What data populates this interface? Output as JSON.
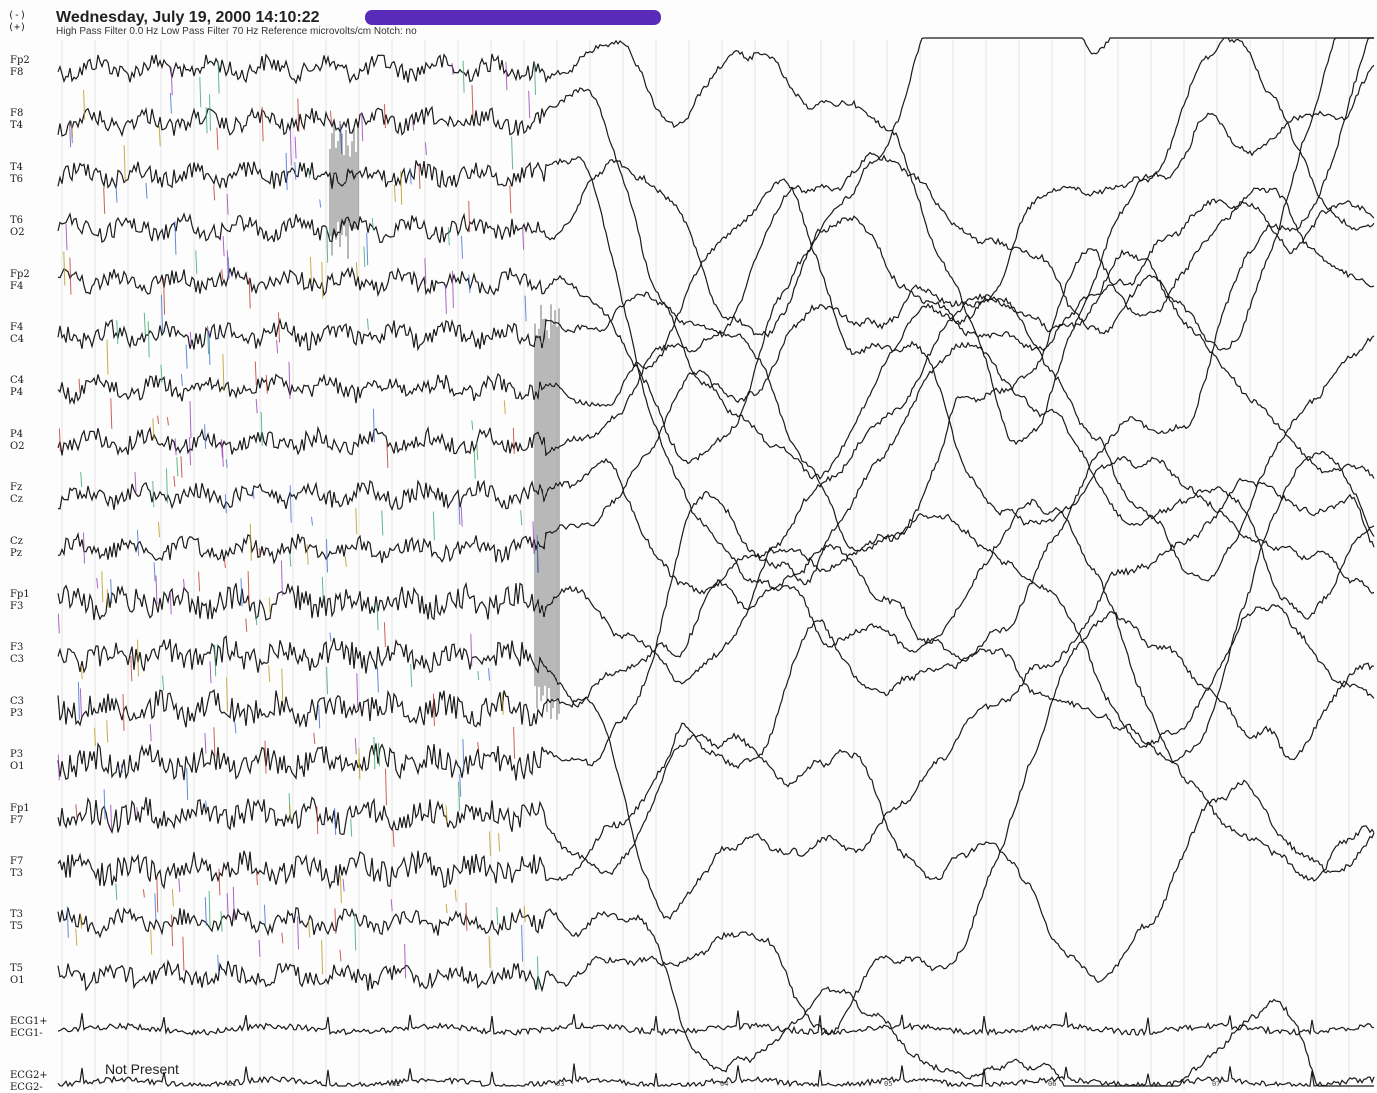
{
  "header": {
    "polarity_neg": "(-)",
    "polarity_pos": "(+)",
    "timestamp": "Wednesday, July 19, 2000 14:10:22",
    "filter_line": "High Pass Filter 0.0 Hz  Low Pass Filter 70 Hz  Reference  microvolts/cm  Notch: no",
    "highlight_color": "#5a2bb8"
  },
  "channels": [
    {
      "top": "Fp2",
      "bottom": "F8"
    },
    {
      "top": "F8",
      "bottom": "T4"
    },
    {
      "top": "T4",
      "bottom": "T6"
    },
    {
      "top": "T6",
      "bottom": "O2"
    },
    {
      "top": "Fp2",
      "bottom": "F4"
    },
    {
      "top": "F4",
      "bottom": "C4"
    },
    {
      "top": "C4",
      "bottom": "P4"
    },
    {
      "top": "P4",
      "bottom": "O2"
    },
    {
      "top": "Fz",
      "bottom": "Cz"
    },
    {
      "top": "Cz",
      "bottom": "Pz"
    },
    {
      "top": "Fp1",
      "bottom": "F3"
    },
    {
      "top": "F3",
      "bottom": "C3"
    },
    {
      "top": "C3",
      "bottom": "P3"
    },
    {
      "top": "P3",
      "bottom": "O1"
    },
    {
      "top": "Fp1",
      "bottom": "F7"
    },
    {
      "top": "F7",
      "bottom": "T3"
    },
    {
      "top": "T3",
      "bottom": "T5"
    },
    {
      "top": "T5",
      "bottom": "O1"
    },
    {
      "top": "ECG1+",
      "bottom": "ECG1-"
    },
    {
      "top": "ECG2+",
      "bottom": "ECG2-"
    }
  ],
  "footer": {
    "not_present": "Not Present"
  },
  "time_ticks": [
    "01",
    "02",
    "03",
    "04",
    "05",
    "06",
    "07"
  ],
  "colors": {
    "trace": "#1a1a1a",
    "grid": "#e4e4e4",
    "artifact_colors": [
      "#3aa86b",
      "#c0392b",
      "#3d6fd1",
      "#b59a1a",
      "#9b3fb8"
    ]
  }
}
